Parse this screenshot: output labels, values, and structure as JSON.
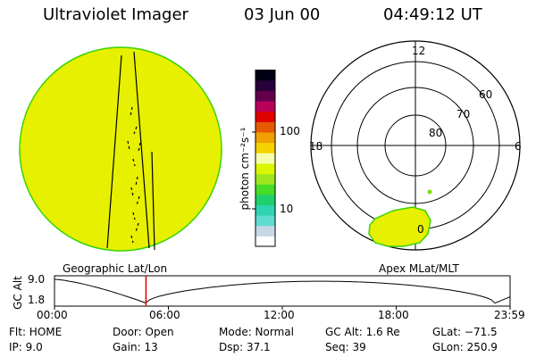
{
  "header": {
    "instrument": "Ultraviolet Imager",
    "date": "03 Jun 00",
    "time": "04:49:12 UT"
  },
  "colorbar": {
    "unit_label": "photon cm⁻²s⁻¹",
    "tick_labels": [
      "100",
      "10"
    ],
    "colors": [
      "#ffffff",
      "#c8d7e6",
      "#5fdcd2",
      "#2ed3b1",
      "#1fcf6c",
      "#46dc28",
      "#a0e61e",
      "#dcf500",
      "#f5ffaa",
      "#f5d200",
      "#f0a000",
      "#e65a00",
      "#e10000",
      "#b9005a",
      "#64004b",
      "#28003c",
      "#000014"
    ]
  },
  "panels": {
    "left_caption": "Geographic Lat/Lon",
    "right_caption": "Apex MLat/MLT",
    "disk_color": "#e6f000",
    "oval_color": "#e6f000",
    "polar_labels": {
      "top": "12",
      "bottom": "0",
      "left": "18",
      "right": "6"
    },
    "ring_labels": [
      "80",
      "70",
      "60"
    ]
  },
  "altitude_plot": {
    "ylabel": "GC Alt",
    "yticks": [
      "9.0",
      "1.8"
    ],
    "xticks": [
      "00:00",
      "06:00",
      "12:00",
      "18:00",
      "23:59"
    ],
    "marker_time_hours": 4.82,
    "marker_color": "#dd0000"
  },
  "info": {
    "flt": "Flt: HOME",
    "ip": "IP:  9.0",
    "door": "Door: Open",
    "gain": "Gain: 13",
    "mode": "Mode: Normal",
    "dsp": "Dsp:   37.1",
    "gcalt": "GC Alt: 1.6 Re",
    "seq": "Seq: 39",
    "glat": "GLat: −71.5",
    "glon": "GLon: 250.9"
  }
}
